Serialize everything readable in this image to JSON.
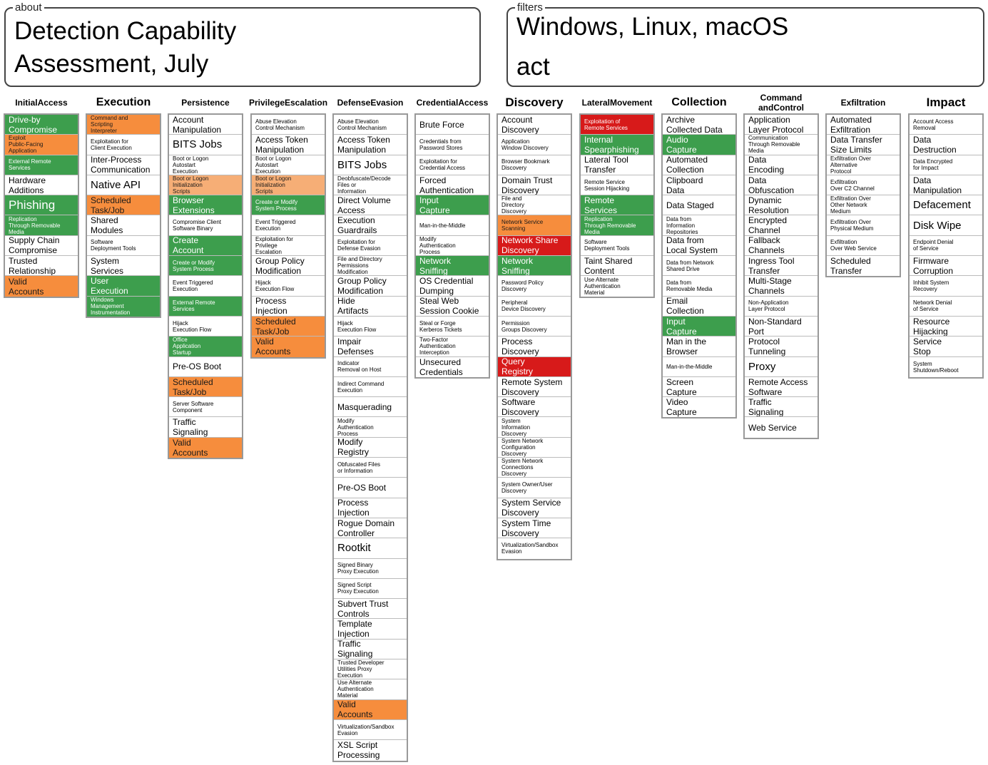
{
  "about": {
    "legend": "about",
    "line1": "Detection Capability",
    "line2": "Assessment, July"
  },
  "filters": {
    "legend": "filters",
    "line1": "Windows, Linux, macOS",
    "line2": "act"
  },
  "colors": {
    "green": "#3d9e4d",
    "orange": "#f68d3d",
    "lightorange": "#f6ae76",
    "red": "#d71a1a"
  },
  "tactics": [
    {
      "name": "Initial\nAccess",
      "hsize": "small",
      "techniques": [
        {
          "label": "Drive-by\nCompromise",
          "color": "green"
        },
        {
          "label": "Exploit\nPublic-Facing\nApplication",
          "color": "orange",
          "size": "tiny"
        },
        {
          "label": "External Remote\nServices",
          "color": "green",
          "size": "tiny"
        },
        {
          "label": "Hardware\nAdditions"
        },
        {
          "label": "Phishing",
          "color": "green",
          "size": "huge"
        },
        {
          "label": "Replication\nThrough Removable\nMedia",
          "color": "green",
          "size": "tiny"
        },
        {
          "label": "Supply Chain\nCompromise"
        },
        {
          "label": "Trusted\nRelationship"
        },
        {
          "label": "Valid\nAccounts",
          "color": "orange"
        }
      ]
    },
    {
      "name": "Execution",
      "hsize": "large",
      "techniques": [
        {
          "label": "Command and\nScripting\nInterpreter",
          "color": "orange",
          "size": "tiny"
        },
        {
          "label": "Exploitation for\nClient Execution",
          "size": "tiny"
        },
        {
          "label": "Inter-Process\nCommunication"
        },
        {
          "label": "Native API",
          "size": "big"
        },
        {
          "label": "Scheduled\nTask/Job",
          "color": "orange"
        },
        {
          "label": "Shared\nModules"
        },
        {
          "label": "Software\nDeployment Tools",
          "size": "tiny"
        },
        {
          "label": "System\nServices"
        },
        {
          "label": "User\nExecution",
          "color": "green"
        },
        {
          "label": "Windows\nManagement\nInstrumentation",
          "color": "green",
          "size": "tiny"
        }
      ]
    },
    {
      "name": "Persistence",
      "hsize": "small",
      "techniques": [
        {
          "label": "Account\nManipulation"
        },
        {
          "label": "BITS Jobs",
          "size": "big"
        },
        {
          "label": "Boot or Logon\nAutostart\nExecution",
          "size": "tiny"
        },
        {
          "label": "Boot or Logon\nInitialization\nScripts",
          "color": "lightorange",
          "size": "tiny"
        },
        {
          "label": "Browser\nExtensions",
          "color": "green"
        },
        {
          "label": "Compromise Client\nSoftware Binary",
          "size": "tiny"
        },
        {
          "label": "Create\nAccount",
          "color": "green"
        },
        {
          "label": "Create or Modify\nSystem Process",
          "color": "green",
          "size": "tiny"
        },
        {
          "label": "Event Triggered\nExecution",
          "size": "tiny"
        },
        {
          "label": "External Remote\nServices",
          "color": "green",
          "size": "tiny"
        },
        {
          "label": "Hijack\nExecution Flow",
          "size": "tiny"
        },
        {
          "label": "Office\nApplication\nStartup",
          "color": "green",
          "size": "tiny"
        },
        {
          "label": "Pre-OS Boot"
        },
        {
          "label": "Scheduled\nTask/Job",
          "color": "orange"
        },
        {
          "label": "Server Software\nComponent",
          "size": "tiny"
        },
        {
          "label": "Traffic\nSignaling"
        },
        {
          "label": "Valid\nAccounts",
          "color": "orange"
        }
      ]
    },
    {
      "name": "Privilege\nEscalation",
      "hsize": "small",
      "techniques": [
        {
          "label": "Abuse Elevation\nControl Mechanism",
          "size": "tiny"
        },
        {
          "label": "Access Token\nManipulation"
        },
        {
          "label": "Boot or Logon\nAutostart\nExecution",
          "size": "tiny"
        },
        {
          "label": "Boot or Logon\nInitialization\nScripts",
          "color": "lightorange",
          "size": "tiny"
        },
        {
          "label": "Create or Modify\nSystem Process",
          "color": "green",
          "size": "tiny"
        },
        {
          "label": "Event Triggered\nExecution",
          "size": "tiny"
        },
        {
          "label": "Exploitation for\nPrivilege\nEscalation",
          "size": "tiny"
        },
        {
          "label": "Group Policy\nModification"
        },
        {
          "label": "Hijack\nExecution Flow",
          "size": "tiny"
        },
        {
          "label": "Process\nInjection"
        },
        {
          "label": "Scheduled\nTask/Job",
          "color": "orange"
        },
        {
          "label": "Valid\nAccounts",
          "color": "orange"
        }
      ]
    },
    {
      "name": "Defense\nEvasion",
      "hsize": "small",
      "techniques": [
        {
          "label": "Abuse Elevation\nControl Mechanism",
          "size": "tiny"
        },
        {
          "label": "Access Token\nManipulation"
        },
        {
          "label": "BITS Jobs",
          "size": "big"
        },
        {
          "label": "Deobfuscate/Decode\nFiles or\nInformation",
          "size": "tiny"
        },
        {
          "label": "Direct Volume\nAccess"
        },
        {
          "label": "Execution\nGuardrails"
        },
        {
          "label": "Exploitation for\nDefense Evasion",
          "size": "tiny"
        },
        {
          "label": "File and Directory\nPermissions\nModification",
          "size": "tiny"
        },
        {
          "label": "Group Policy\nModification"
        },
        {
          "label": "Hide\nArtifacts"
        },
        {
          "label": "Hijack\nExecution Flow",
          "size": "tiny"
        },
        {
          "label": "Impair\nDefenses"
        },
        {
          "label": "Indicator\nRemoval on Host",
          "size": "tiny"
        },
        {
          "label": "Indirect Command\nExecution",
          "size": "tiny"
        },
        {
          "label": "Masquerading"
        },
        {
          "label": "Modify\nAuthentication\nProcess",
          "size": "tiny"
        },
        {
          "label": "Modify\nRegistry"
        },
        {
          "label": "Obfuscated Files\nor Information",
          "size": "tiny"
        },
        {
          "label": "Pre-OS Boot"
        },
        {
          "label": "Process\nInjection"
        },
        {
          "label": "Rogue Domain\nController"
        },
        {
          "label": "Rootkit",
          "size": "big"
        },
        {
          "label": "Signed Binary\nProxy Execution",
          "size": "tiny"
        },
        {
          "label": "Signed Script\nProxy Execution",
          "size": "tiny"
        },
        {
          "label": "Subvert Trust\nControls"
        },
        {
          "label": "Template\nInjection"
        },
        {
          "label": "Traffic\nSignaling"
        },
        {
          "label": "Trusted Developer\nUtilities Proxy\nExecution",
          "size": "tiny"
        },
        {
          "label": "Use Alternate\nAuthentication\nMaterial",
          "size": "tiny"
        },
        {
          "label": "Valid\nAccounts",
          "color": "orange"
        },
        {
          "label": "Virtualization/Sandbox\nEvasion",
          "size": "tiny"
        },
        {
          "label": "XSL Script\nProcessing"
        }
      ]
    },
    {
      "name": "Credential\nAccess",
      "hsize": "small",
      "techniques": [
        {
          "label": "Brute Force"
        },
        {
          "label": "Credentials from\nPassword Stores",
          "size": "tiny"
        },
        {
          "label": "Exploitation for\nCredential Access",
          "size": "tiny"
        },
        {
          "label": "Forced\nAuthentication"
        },
        {
          "label": "Input\nCapture",
          "color": "green"
        },
        {
          "label": "Man-in-the-Middle",
          "size": "tiny"
        },
        {
          "label": "Modify\nAuthentication\nProcess",
          "size": "tiny"
        },
        {
          "label": "Network\nSniffing",
          "color": "green"
        },
        {
          "label": "OS Credential\nDumping"
        },
        {
          "label": "Steal Web\nSession Cookie"
        },
        {
          "label": "Steal or Forge\nKerberos Tickets",
          "size": "tiny"
        },
        {
          "label": "Two-Factor\nAuthentication\nInterception",
          "size": "tiny"
        },
        {
          "label": "Unsecured\nCredentials"
        }
      ]
    },
    {
      "name": "Discovery",
      "hsize": "xl",
      "techniques": [
        {
          "label": "Account\nDiscovery"
        },
        {
          "label": "Application\nWindow Discovery",
          "size": "tiny"
        },
        {
          "label": "Browser Bookmark\nDiscovery",
          "size": "tiny"
        },
        {
          "label": "Domain Trust\nDiscovery"
        },
        {
          "label": "File and\nDirectory\nDiscovery",
          "size": "tiny"
        },
        {
          "label": "Network Service\nScanning",
          "color": "orange",
          "size": "tiny"
        },
        {
          "label": "Network Share\nDiscovery",
          "color": "red"
        },
        {
          "label": "Network\nSniffing",
          "color": "green"
        },
        {
          "label": "Password Policy\nDiscovery",
          "size": "tiny"
        },
        {
          "label": "Peripheral\nDevice Discovery",
          "size": "tiny"
        },
        {
          "label": "Permission\nGroups Discovery",
          "size": "tiny"
        },
        {
          "label": "Process\nDiscovery"
        },
        {
          "label": "Query\nRegistry",
          "color": "red"
        },
        {
          "label": "Remote System\nDiscovery"
        },
        {
          "label": "Software\nDiscovery"
        },
        {
          "label": "System\nInformation\nDiscovery",
          "size": "tiny"
        },
        {
          "label": "System Network\nConfiguration\nDiscovery",
          "size": "tiny"
        },
        {
          "label": "System Network\nConnections\nDiscovery",
          "size": "tiny"
        },
        {
          "label": "System Owner/User\nDiscovery",
          "size": "tiny"
        },
        {
          "label": "System Service\nDiscovery"
        },
        {
          "label": "System Time\nDiscovery"
        },
        {
          "label": "Virtualization/Sandbox\nEvasion",
          "size": "tiny"
        }
      ]
    },
    {
      "name": "Lateral\nMovement",
      "hsize": "small",
      "techniques": [
        {
          "label": "Exploitation of\nRemote Services",
          "color": "red",
          "size": "tiny"
        },
        {
          "label": "Internal\nSpearphishing",
          "color": "green"
        },
        {
          "label": "Lateral Tool\nTransfer"
        },
        {
          "label": "Remote Service\nSession Hijacking",
          "size": "tiny"
        },
        {
          "label": "Remote\nServices",
          "color": "green"
        },
        {
          "label": "Replication\nThrough Removable\nMedia",
          "color": "green",
          "size": "tiny"
        },
        {
          "label": "Software\nDeployment Tools",
          "size": "tiny"
        },
        {
          "label": "Taint Shared\nContent"
        },
        {
          "label": "Use Alternate\nAuthentication\nMaterial",
          "size": "tiny"
        }
      ]
    },
    {
      "name": "Collection",
      "hsize": "large",
      "techniques": [
        {
          "label": "Archive\nCollected Data"
        },
        {
          "label": "Audio\nCapture",
          "color": "green"
        },
        {
          "label": "Automated\nCollection"
        },
        {
          "label": "Clipboard\nData"
        },
        {
          "label": "Data Staged"
        },
        {
          "label": "Data from\nInformation\nRepositories",
          "size": "tiny"
        },
        {
          "label": "Data from\nLocal System"
        },
        {
          "label": "Data from Network\nShared Drive",
          "size": "tiny"
        },
        {
          "label": "Data from\nRemovable Media",
          "size": "tiny"
        },
        {
          "label": "Email\nCollection"
        },
        {
          "label": "Input\nCapture",
          "color": "green"
        },
        {
          "label": "Man in the\nBrowser"
        },
        {
          "label": "Man-in-the-Middle",
          "size": "tiny"
        },
        {
          "label": "Screen\nCapture"
        },
        {
          "label": "Video\nCapture"
        }
      ]
    },
    {
      "name": "Command and\nControl",
      "hsize": "small",
      "techniques": [
        {
          "label": "Application\nLayer Protocol"
        },
        {
          "label": "Communication\nThrough Removable\nMedia",
          "size": "tiny"
        },
        {
          "label": "Data\nEncoding"
        },
        {
          "label": "Data\nObfuscation"
        },
        {
          "label": "Dynamic\nResolution"
        },
        {
          "label": "Encrypted\nChannel"
        },
        {
          "label": "Fallback\nChannels"
        },
        {
          "label": "Ingress Tool\nTransfer"
        },
        {
          "label": "Multi-Stage\nChannels"
        },
        {
          "label": "Non-Application\nLayer Protocol",
          "size": "tiny"
        },
        {
          "label": "Non-Standard\nPort"
        },
        {
          "label": "Protocol\nTunneling"
        },
        {
          "label": "Proxy",
          "size": "big"
        },
        {
          "label": "Remote Access\nSoftware"
        },
        {
          "label": "Traffic\nSignaling"
        },
        {
          "label": "Web Service"
        }
      ]
    },
    {
      "name": "Exfiltration",
      "hsize": "small",
      "techniques": [
        {
          "label": "Automated\nExfiltration"
        },
        {
          "label": "Data Transfer\nSize Limits"
        },
        {
          "label": "Exfiltration Over\nAlternative\nProtocol",
          "size": "tiny"
        },
        {
          "label": "Exfiltration\nOver C2 Channel",
          "size": "tiny"
        },
        {
          "label": "Exfiltration Over\nOther Network\nMedium",
          "size": "tiny"
        },
        {
          "label": "Exfiltration Over\nPhysical Medium",
          "size": "tiny"
        },
        {
          "label": "Exfiltration\nOver Web Service",
          "size": "tiny"
        },
        {
          "label": "Scheduled\nTransfer"
        }
      ]
    },
    {
      "name": "Impact",
      "hsize": "xl",
      "techniques": [
        {
          "label": "Account Access\nRemoval",
          "size": "tiny"
        },
        {
          "label": "Data\nDestruction"
        },
        {
          "label": "Data Encrypted\nfor Impact",
          "size": "tiny"
        },
        {
          "label": "Data\nManipulation"
        },
        {
          "label": "Defacement",
          "size": "big"
        },
        {
          "label": "Disk Wipe",
          "size": "big"
        },
        {
          "label": "Endpoint Denial\nof Service",
          "size": "tiny"
        },
        {
          "label": "Firmware\nCorruption"
        },
        {
          "label": "Inhibit System\nRecovery",
          "size": "tiny"
        },
        {
          "label": "Network Denial\nof Service",
          "size": "tiny"
        },
        {
          "label": "Resource\nHijacking"
        },
        {
          "label": "Service\nStop"
        },
        {
          "label": "System\nShutdown/Reboot",
          "size": "tiny"
        }
      ]
    }
  ]
}
